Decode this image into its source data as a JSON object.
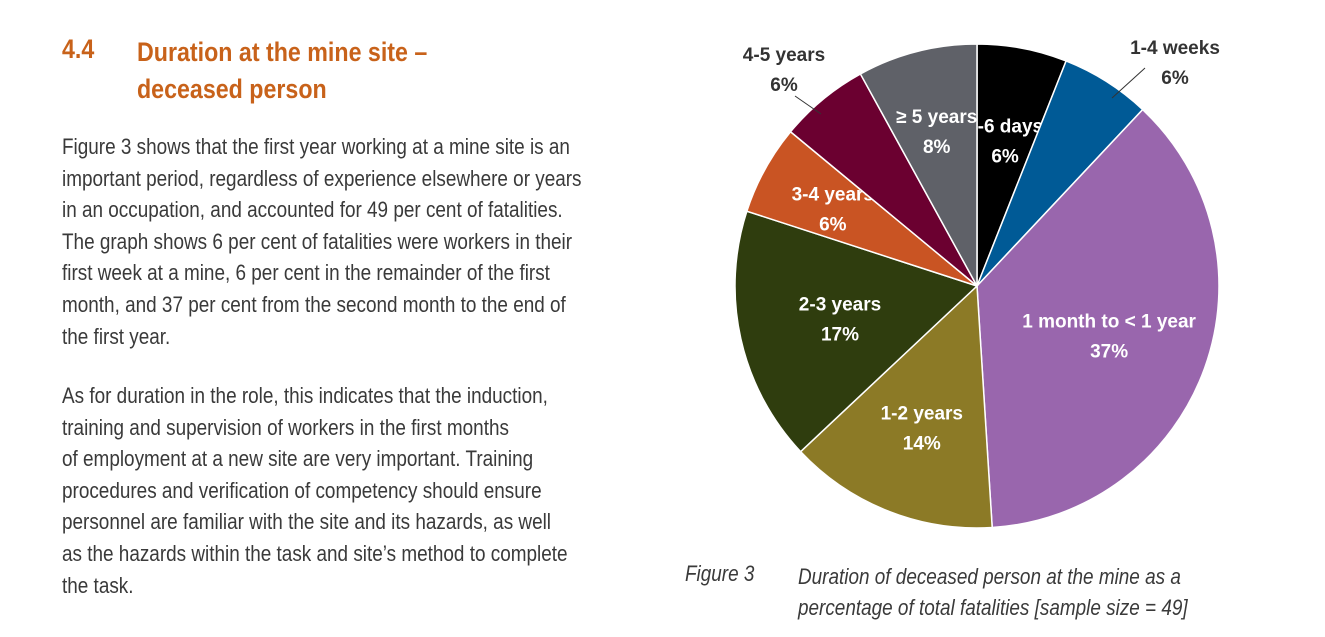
{
  "heading": {
    "number": "4.4",
    "title_lines": [
      "Duration at the mine site –",
      "deceased person"
    ]
  },
  "paragraphs": [
    [
      "Figure 3 shows that the first year working at a mine site is an",
      "important period, regardless of experience elsewhere or years",
      "in an occupation, and accounted for 49 per cent of fatalities.",
      "The graph shows 6 per cent of fatalities were workers in their",
      "first week at a mine, 6 per cent in the remainder of the first",
      "month, and 37 per cent from the second month to the end of",
      "the first year."
    ],
    [
      "As for duration in the role, this indicates that the induction,",
      "training and supervision of workers in the first months",
      "of employment at a new site are very important. Training",
      "procedures and verification of competency should ensure",
      "personnel are familiar with the site and its hazards, as well",
      "as the hazards within the task and site’s method to complete",
      "the task."
    ]
  ],
  "figure": {
    "label": "Figure 3",
    "caption_lines": [
      "Duration of  deceased person at the mine as a",
      "percentage of total fatalities [sample size = 49]"
    ]
  },
  "chart_data": {
    "type": "pie",
    "start_angle_deg": 0,
    "direction": "clockwise",
    "slices": [
      {
        "label": "1-6 days",
        "value": 6,
        "value_label": "6%",
        "color": "#000000",
        "text_color": "#ffffff",
        "label_position": "inside"
      },
      {
        "label": "1-4 weeks",
        "value": 6,
        "value_label": "6%",
        "color": "#005a96",
        "text_color": "#333333",
        "label_position": "outside"
      },
      {
        "label": "1 month to < 1 year",
        "value": 37,
        "value_label": "37%",
        "color": "#9966ad",
        "text_color": "#ffffff",
        "label_position": "inside"
      },
      {
        "label": "1-2 years",
        "value": 14,
        "value_label": "14%",
        "color": "#8c7a26",
        "text_color": "#ffffff",
        "label_position": "inside"
      },
      {
        "label": "2-3 years",
        "value": 17,
        "value_label": "17%",
        "color": "#2f3d0e",
        "text_color": "#ffffff",
        "label_position": "inside"
      },
      {
        "label": "3-4 years",
        "value": 6,
        "value_label": "6%",
        "color": "#c95423",
        "text_color": "#ffffff",
        "label_position": "inside"
      },
      {
        "label": "4-5 years",
        "value": 6,
        "value_label": "6%",
        "color": "#6b0030",
        "text_color": "#333333",
        "label_position": "outside"
      },
      {
        "label": "≥ 5 years",
        "value": 8,
        "value_label": "8%",
        "color": "#5f6168",
        "text_color": "#ffffff",
        "label_position": "inside"
      }
    ]
  }
}
